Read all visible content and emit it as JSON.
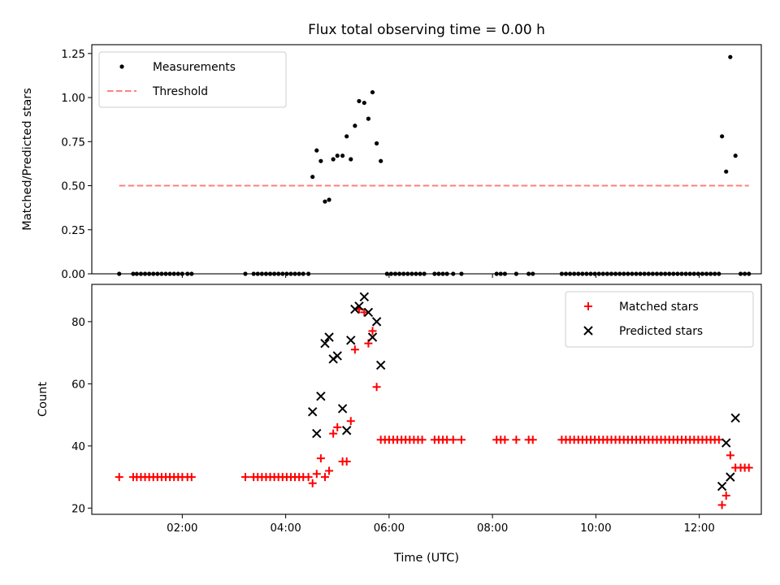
{
  "chart_data": [
    {
      "type": "scatter",
      "title": "Flux total observing time = 0.00 h",
      "ylabel": "Matched/Predicted stars",
      "xlabel": "",
      "xlim": [
        0.25,
        13.2
      ],
      "ylim": [
        0.0,
        1.3
      ],
      "yticks": [
        0.0,
        0.25,
        0.5,
        0.75,
        1.0,
        1.25
      ],
      "ytick_labels": [
        "0.00",
        "0.25",
        "0.50",
        "0.75",
        "1.00",
        "1.25"
      ],
      "xticks": [
        2,
        4,
        6,
        8,
        10,
        12
      ],
      "legend_position": "top-left",
      "series": [
        {
          "name": "Measurements",
          "kind": "scatter",
          "marker": "dot",
          "color": "#000000",
          "points": [
            [
              0.78,
              0.0
            ],
            [
              1.05,
              0.0
            ],
            [
              1.12,
              0.0
            ],
            [
              1.2,
              0.0
            ],
            [
              1.28,
              0.0
            ],
            [
              1.36,
              0.0
            ],
            [
              1.44,
              0.0
            ],
            [
              1.52,
              0.0
            ],
            [
              1.6,
              0.0
            ],
            [
              1.68,
              0.0
            ],
            [
              1.76,
              0.0
            ],
            [
              1.84,
              0.0
            ],
            [
              1.92,
              0.0
            ],
            [
              2.0,
              0.0
            ],
            [
              2.1,
              0.0
            ],
            [
              2.18,
              0.0
            ],
            [
              3.22,
              0.0
            ],
            [
              3.38,
              0.0
            ],
            [
              3.46,
              0.0
            ],
            [
              3.54,
              0.0
            ],
            [
              3.62,
              0.0
            ],
            [
              3.7,
              0.0
            ],
            [
              3.78,
              0.0
            ],
            [
              3.86,
              0.0
            ],
            [
              3.94,
              0.0
            ],
            [
              4.02,
              0.0
            ],
            [
              4.1,
              0.0
            ],
            [
              4.18,
              0.0
            ],
            [
              4.26,
              0.0
            ],
            [
              4.34,
              0.0
            ],
            [
              4.44,
              0.0
            ],
            [
              4.52,
              0.55
            ],
            [
              4.6,
              0.7
            ],
            [
              4.68,
              0.64
            ],
            [
              4.76,
              0.41
            ],
            [
              4.84,
              0.42
            ],
            [
              4.92,
              0.65
            ],
            [
              5.0,
              0.67
            ],
            [
              5.1,
              0.67
            ],
            [
              5.18,
              0.78
            ],
            [
              5.26,
              0.65
            ],
            [
              5.34,
              0.84
            ],
            [
              5.42,
              0.98
            ],
            [
              5.52,
              0.97
            ],
            [
              5.6,
              0.88
            ],
            [
              5.68,
              1.03
            ],
            [
              5.76,
              0.74
            ],
            [
              5.84,
              0.64
            ],
            [
              5.96,
              0.0
            ],
            [
              6.04,
              0.0
            ],
            [
              6.12,
              0.0
            ],
            [
              6.2,
              0.0
            ],
            [
              6.28,
              0.0
            ],
            [
              6.36,
              0.0
            ],
            [
              6.44,
              0.0
            ],
            [
              6.52,
              0.0
            ],
            [
              6.6,
              0.0
            ],
            [
              6.68,
              0.0
            ],
            [
              6.88,
              0.0
            ],
            [
              6.96,
              0.0
            ],
            [
              7.04,
              0.0
            ],
            [
              7.12,
              0.0
            ],
            [
              7.24,
              0.0
            ],
            [
              7.4,
              0.0
            ],
            [
              8.08,
              0.0
            ],
            [
              8.16,
              0.0
            ],
            [
              8.24,
              0.0
            ],
            [
              8.46,
              0.0
            ],
            [
              8.7,
              0.0
            ],
            [
              8.78,
              0.0
            ],
            [
              9.34,
              0.0
            ],
            [
              9.42,
              0.0
            ],
            [
              9.5,
              0.0
            ],
            [
              9.58,
              0.0
            ],
            [
              9.66,
              0.0
            ],
            [
              9.74,
              0.0
            ],
            [
              9.82,
              0.0
            ],
            [
              9.9,
              0.0
            ],
            [
              9.98,
              0.0
            ],
            [
              10.06,
              0.0
            ],
            [
              10.14,
              0.0
            ],
            [
              10.22,
              0.0
            ],
            [
              10.3,
              0.0
            ],
            [
              10.38,
              0.0
            ],
            [
              10.46,
              0.0
            ],
            [
              10.54,
              0.0
            ],
            [
              10.62,
              0.0
            ],
            [
              10.7,
              0.0
            ],
            [
              10.78,
              0.0
            ],
            [
              10.86,
              0.0
            ],
            [
              10.94,
              0.0
            ],
            [
              11.02,
              0.0
            ],
            [
              11.1,
              0.0
            ],
            [
              11.18,
              0.0
            ],
            [
              11.26,
              0.0
            ],
            [
              11.34,
              0.0
            ],
            [
              11.42,
              0.0
            ],
            [
              11.5,
              0.0
            ],
            [
              11.58,
              0.0
            ],
            [
              11.66,
              0.0
            ],
            [
              11.74,
              0.0
            ],
            [
              11.82,
              0.0
            ],
            [
              11.9,
              0.0
            ],
            [
              11.98,
              0.0
            ],
            [
              12.06,
              0.0
            ],
            [
              12.14,
              0.0
            ],
            [
              12.22,
              0.0
            ],
            [
              12.3,
              0.0
            ],
            [
              12.38,
              0.0
            ],
            [
              12.44,
              0.78
            ],
            [
              12.52,
              0.58
            ],
            [
              12.6,
              1.23
            ],
            [
              12.7,
              0.67
            ],
            [
              12.8,
              0.0
            ],
            [
              12.88,
              0.0
            ],
            [
              12.96,
              0.0
            ]
          ]
        },
        {
          "name": "Threshold",
          "kind": "line",
          "style": "dashed",
          "color": "#ff7f7f",
          "points": [
            [
              0.78,
              0.5
            ],
            [
              12.96,
              0.5
            ]
          ]
        }
      ]
    },
    {
      "type": "scatter",
      "title": "",
      "ylabel": "Count",
      "xlabel": "Time (UTC)",
      "xlim": [
        0.25,
        13.2
      ],
      "ylim": [
        18,
        92
      ],
      "yticks": [
        20,
        40,
        60,
        80
      ],
      "ytick_labels": [
        "20",
        "40",
        "60",
        "80"
      ],
      "xticks": [
        2,
        4,
        6,
        8,
        10,
        12
      ],
      "xtick_labels": [
        "02:00",
        "04:00",
        "06:00",
        "08:00",
        "10:00",
        "12:00"
      ],
      "legend_position": "top-right",
      "series": [
        {
          "name": "Matched stars",
          "kind": "scatter",
          "marker": "plus",
          "color": "#ff0000",
          "points": [
            [
              0.78,
              30
            ],
            [
              1.05,
              30
            ],
            [
              1.12,
              30
            ],
            [
              1.2,
              30
            ],
            [
              1.28,
              30
            ],
            [
              1.36,
              30
            ],
            [
              1.44,
              30
            ],
            [
              1.52,
              30
            ],
            [
              1.6,
              30
            ],
            [
              1.68,
              30
            ],
            [
              1.76,
              30
            ],
            [
              1.84,
              30
            ],
            [
              1.92,
              30
            ],
            [
              2.0,
              30
            ],
            [
              2.1,
              30
            ],
            [
              2.18,
              30
            ],
            [
              3.22,
              30
            ],
            [
              3.38,
              30
            ],
            [
              3.46,
              30
            ],
            [
              3.54,
              30
            ],
            [
              3.62,
              30
            ],
            [
              3.7,
              30
            ],
            [
              3.78,
              30
            ],
            [
              3.86,
              30
            ],
            [
              3.94,
              30
            ],
            [
              4.02,
              30
            ],
            [
              4.1,
              30
            ],
            [
              4.18,
              30
            ],
            [
              4.26,
              30
            ],
            [
              4.34,
              30
            ],
            [
              4.44,
              30
            ],
            [
              4.52,
              28
            ],
            [
              4.6,
              31
            ],
            [
              4.68,
              36
            ],
            [
              4.76,
              30
            ],
            [
              4.84,
              32
            ],
            [
              4.92,
              44
            ],
            [
              5.0,
              46
            ],
            [
              5.1,
              35
            ],
            [
              5.18,
              35
            ],
            [
              5.26,
              48
            ],
            [
              5.34,
              71
            ],
            [
              5.42,
              84
            ],
            [
              5.52,
              83
            ],
            [
              5.6,
              73
            ],
            [
              5.68,
              77
            ],
            [
              5.76,
              59
            ],
            [
              5.84,
              42
            ],
            [
              5.92,
              42
            ],
            [
              6.0,
              42
            ],
            [
              6.08,
              42
            ],
            [
              6.16,
              42
            ],
            [
              6.24,
              42
            ],
            [
              6.32,
              42
            ],
            [
              6.4,
              42
            ],
            [
              6.48,
              42
            ],
            [
              6.56,
              42
            ],
            [
              6.64,
              42
            ],
            [
              6.88,
              42
            ],
            [
              6.96,
              42
            ],
            [
              7.04,
              42
            ],
            [
              7.12,
              42
            ],
            [
              7.24,
              42
            ],
            [
              7.4,
              42
            ],
            [
              8.08,
              42
            ],
            [
              8.16,
              42
            ],
            [
              8.24,
              42
            ],
            [
              8.46,
              42
            ],
            [
              8.7,
              42
            ],
            [
              8.78,
              42
            ],
            [
              9.34,
              42
            ],
            [
              9.42,
              42
            ],
            [
              9.5,
              42
            ],
            [
              9.58,
              42
            ],
            [
              9.66,
              42
            ],
            [
              9.74,
              42
            ],
            [
              9.82,
              42
            ],
            [
              9.9,
              42
            ],
            [
              9.98,
              42
            ],
            [
              10.06,
              42
            ],
            [
              10.14,
              42
            ],
            [
              10.22,
              42
            ],
            [
              10.3,
              42
            ],
            [
              10.38,
              42
            ],
            [
              10.46,
              42
            ],
            [
              10.54,
              42
            ],
            [
              10.62,
              42
            ],
            [
              10.7,
              42
            ],
            [
              10.78,
              42
            ],
            [
              10.86,
              42
            ],
            [
              10.94,
              42
            ],
            [
              11.02,
              42
            ],
            [
              11.1,
              42
            ],
            [
              11.18,
              42
            ],
            [
              11.26,
              42
            ],
            [
              11.34,
              42
            ],
            [
              11.42,
              42
            ],
            [
              11.5,
              42
            ],
            [
              11.58,
              42
            ],
            [
              11.66,
              42
            ],
            [
              11.74,
              42
            ],
            [
              11.82,
              42
            ],
            [
              11.9,
              42
            ],
            [
              11.98,
              42
            ],
            [
              12.06,
              42
            ],
            [
              12.14,
              42
            ],
            [
              12.22,
              42
            ],
            [
              12.3,
              42
            ],
            [
              12.38,
              42
            ],
            [
              12.44,
              21
            ],
            [
              12.52,
              24
            ],
            [
              12.6,
              37
            ],
            [
              12.7,
              33
            ],
            [
              12.8,
              33
            ],
            [
              12.88,
              33
            ],
            [
              12.96,
              33
            ]
          ]
        },
        {
          "name": "Predicted stars",
          "kind": "scatter",
          "marker": "x",
          "color": "#000000",
          "points": [
            [
              4.52,
              51
            ],
            [
              4.6,
              44
            ],
            [
              4.68,
              56
            ],
            [
              4.76,
              73
            ],
            [
              4.84,
              75
            ],
            [
              4.92,
              68
            ],
            [
              5.0,
              69
            ],
            [
              5.1,
              52
            ],
            [
              5.18,
              45
            ],
            [
              5.26,
              74
            ],
            [
              5.34,
              84
            ],
            [
              5.42,
              85
            ],
            [
              5.52,
              88
            ],
            [
              5.6,
              83
            ],
            [
              5.68,
              75
            ],
            [
              5.76,
              80
            ],
            [
              5.84,
              66
            ],
            [
              12.44,
              27
            ],
            [
              12.52,
              41
            ],
            [
              12.6,
              30
            ],
            [
              12.7,
              49
            ]
          ]
        }
      ]
    }
  ]
}
